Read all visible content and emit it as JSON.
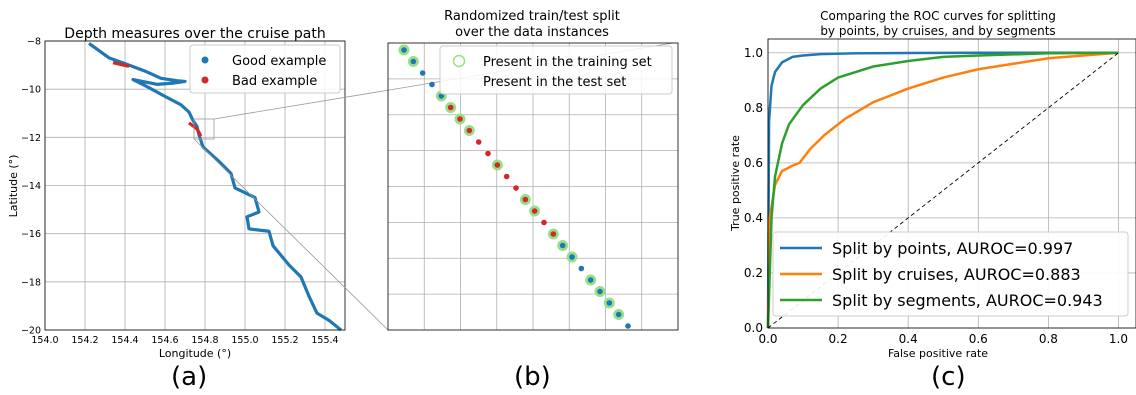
{
  "colors": {
    "good": "#1f77b4",
    "bad": "#d62728",
    "train": "#98df8a",
    "points": "#1f77b4",
    "cruises": "#ff7f0e",
    "segments": "#2ca02c"
  },
  "captions": [
    "(a)",
    "(b)",
    "(c)"
  ],
  "chart_data": [
    {
      "type": "scatter",
      "title": "Depth measures over the cruise path",
      "xlabel": "Longitude (°)",
      "ylabel": "Latitude (°)",
      "xlim": [
        154.0,
        155.5
      ],
      "ylim": [
        -20,
        -8
      ],
      "xticks": [
        "154.0",
        "154.2",
        "154.4",
        "154.6",
        "154.8",
        "155.0",
        "155.2",
        "155.4"
      ],
      "yticks": [
        "-8",
        "-10",
        "-12",
        "-14",
        "-16",
        "-18",
        "-20"
      ],
      "grid": true,
      "legend_position": "top-right",
      "series": [
        {
          "name": "Good example",
          "path": [
            [
              154.22,
              -8.1
            ],
            [
              154.32,
              -8.7
            ],
            [
              154.42,
              -9.0
            ],
            [
              154.5,
              -9.25
            ],
            [
              154.58,
              -9.55
            ],
            [
              154.66,
              -9.65
            ],
            [
              154.7,
              -9.68
            ],
            [
              154.64,
              -9.75
            ],
            [
              154.56,
              -9.8
            ],
            [
              154.44,
              -9.6
            ],
            [
              154.5,
              -9.85
            ],
            [
              154.6,
              -10.3
            ],
            [
              154.68,
              -10.65
            ],
            [
              154.72,
              -10.95
            ],
            [
              154.74,
              -11.3
            ],
            [
              154.76,
              -11.55
            ],
            [
              154.77,
              -11.9
            ],
            [
              154.79,
              -12.4
            ],
            [
              154.87,
              -13.0
            ],
            [
              154.93,
              -13.5
            ],
            [
              154.95,
              -14.1
            ],
            [
              155.05,
              -14.5
            ],
            [
              155.07,
              -15.1
            ],
            [
              155.01,
              -15.3
            ],
            [
              155.02,
              -15.8
            ],
            [
              155.12,
              -15.9
            ],
            [
              155.14,
              -16.5
            ],
            [
              155.22,
              -17.3
            ],
            [
              155.28,
              -17.8
            ],
            [
              155.32,
              -18.6
            ],
            [
              155.36,
              -19.3
            ],
            [
              155.42,
              -19.6
            ],
            [
              155.48,
              -20.0
            ]
          ]
        },
        {
          "name": "Bad example",
          "path": [
            [
              154.34,
              -8.9
            ],
            [
              154.42,
              -9.05
            ],
            [
              154.72,
              -11.4
            ],
            [
              154.76,
              -11.65
            ],
            [
              154.78,
              -11.95
            ]
          ]
        }
      ]
    },
    {
      "type": "scatter",
      "title": "Randomized train/test split over the data instances",
      "grid": true,
      "legend_position": "top-right",
      "series": [
        {
          "name": "Present in the training set"
        },
        {
          "name": "Present in the test set"
        }
      ],
      "points": [
        {
          "c": "good",
          "train": true
        },
        {
          "c": "good",
          "train": true
        },
        {
          "c": "good",
          "train": false
        },
        {
          "c": "good",
          "train": false
        },
        {
          "c": "good",
          "train": true
        },
        {
          "c": "bad",
          "train": true
        },
        {
          "c": "bad",
          "train": true
        },
        {
          "c": "bad",
          "train": true
        },
        {
          "c": "bad",
          "train": false
        },
        {
          "c": "bad",
          "train": false
        },
        {
          "c": "bad",
          "train": true
        },
        {
          "c": "bad",
          "train": false
        },
        {
          "c": "bad",
          "train": false
        },
        {
          "c": "bad",
          "train": true
        },
        {
          "c": "bad",
          "train": true
        },
        {
          "c": "bad",
          "train": false
        },
        {
          "c": "bad",
          "train": true
        },
        {
          "c": "good",
          "train": true
        },
        {
          "c": "good",
          "train": true
        },
        {
          "c": "good",
          "train": false
        },
        {
          "c": "good",
          "train": true
        },
        {
          "c": "good",
          "train": true
        },
        {
          "c": "good",
          "train": true
        },
        {
          "c": "good",
          "train": true
        },
        {
          "c": "good",
          "train": false
        }
      ]
    },
    {
      "type": "line",
      "title": "Comparing the ROC curves for splitting by points, by cruises, and by segments",
      "xlabel": "False positive rate",
      "ylabel": "True positive rate",
      "xlim": [
        0,
        1.05
      ],
      "ylim": [
        0,
        1.05
      ],
      "xticks": [
        "0.0",
        "0.2",
        "0.4",
        "0.6",
        "0.8",
        "1.0"
      ],
      "yticks": [
        "0.0",
        "0.2",
        "0.4",
        "0.6",
        "0.8",
        "1.0"
      ],
      "grid": true,
      "legend_position": "bottom-right",
      "series": [
        {
          "name": "Split by points, AUROC=0.997",
          "color": "points",
          "x": [
            0,
            0.003,
            0.01,
            0.02,
            0.04,
            0.07,
            0.1,
            0.15,
            0.25,
            0.4,
            0.6,
            0.8,
            1.0
          ],
          "y": [
            0,
            0.75,
            0.88,
            0.93,
            0.965,
            0.985,
            0.99,
            0.995,
            0.998,
            0.999,
            1.0,
            1.0,
            1.0
          ]
        },
        {
          "name": "Split by cruises, AUROC=0.883",
          "color": "cruises",
          "x": [
            0,
            0.005,
            0.02,
            0.04,
            0.07,
            0.09,
            0.12,
            0.16,
            0.22,
            0.3,
            0.4,
            0.5,
            0.6,
            0.7,
            0.8,
            0.9,
            1.0
          ],
          "y": [
            0,
            0.4,
            0.52,
            0.57,
            0.59,
            0.6,
            0.65,
            0.7,
            0.76,
            0.82,
            0.87,
            0.91,
            0.94,
            0.96,
            0.98,
            0.99,
            1.0
          ]
        },
        {
          "name": "Split by segments, AUROC=0.943",
          "color": "segments",
          "x": [
            0,
            0.002,
            0.005,
            0.01,
            0.02,
            0.04,
            0.06,
            0.1,
            0.15,
            0.2,
            0.3,
            0.4,
            0.5,
            0.6,
            0.8,
            1.0
          ],
          "y": [
            0,
            0.08,
            0.2,
            0.4,
            0.55,
            0.67,
            0.74,
            0.81,
            0.87,
            0.91,
            0.95,
            0.97,
            0.985,
            0.99,
            0.998,
            1.0
          ]
        },
        {
          "name": "",
          "style": "dashed-diagonal",
          "x": [
            0,
            1
          ],
          "y": [
            0,
            1
          ]
        }
      ]
    }
  ]
}
